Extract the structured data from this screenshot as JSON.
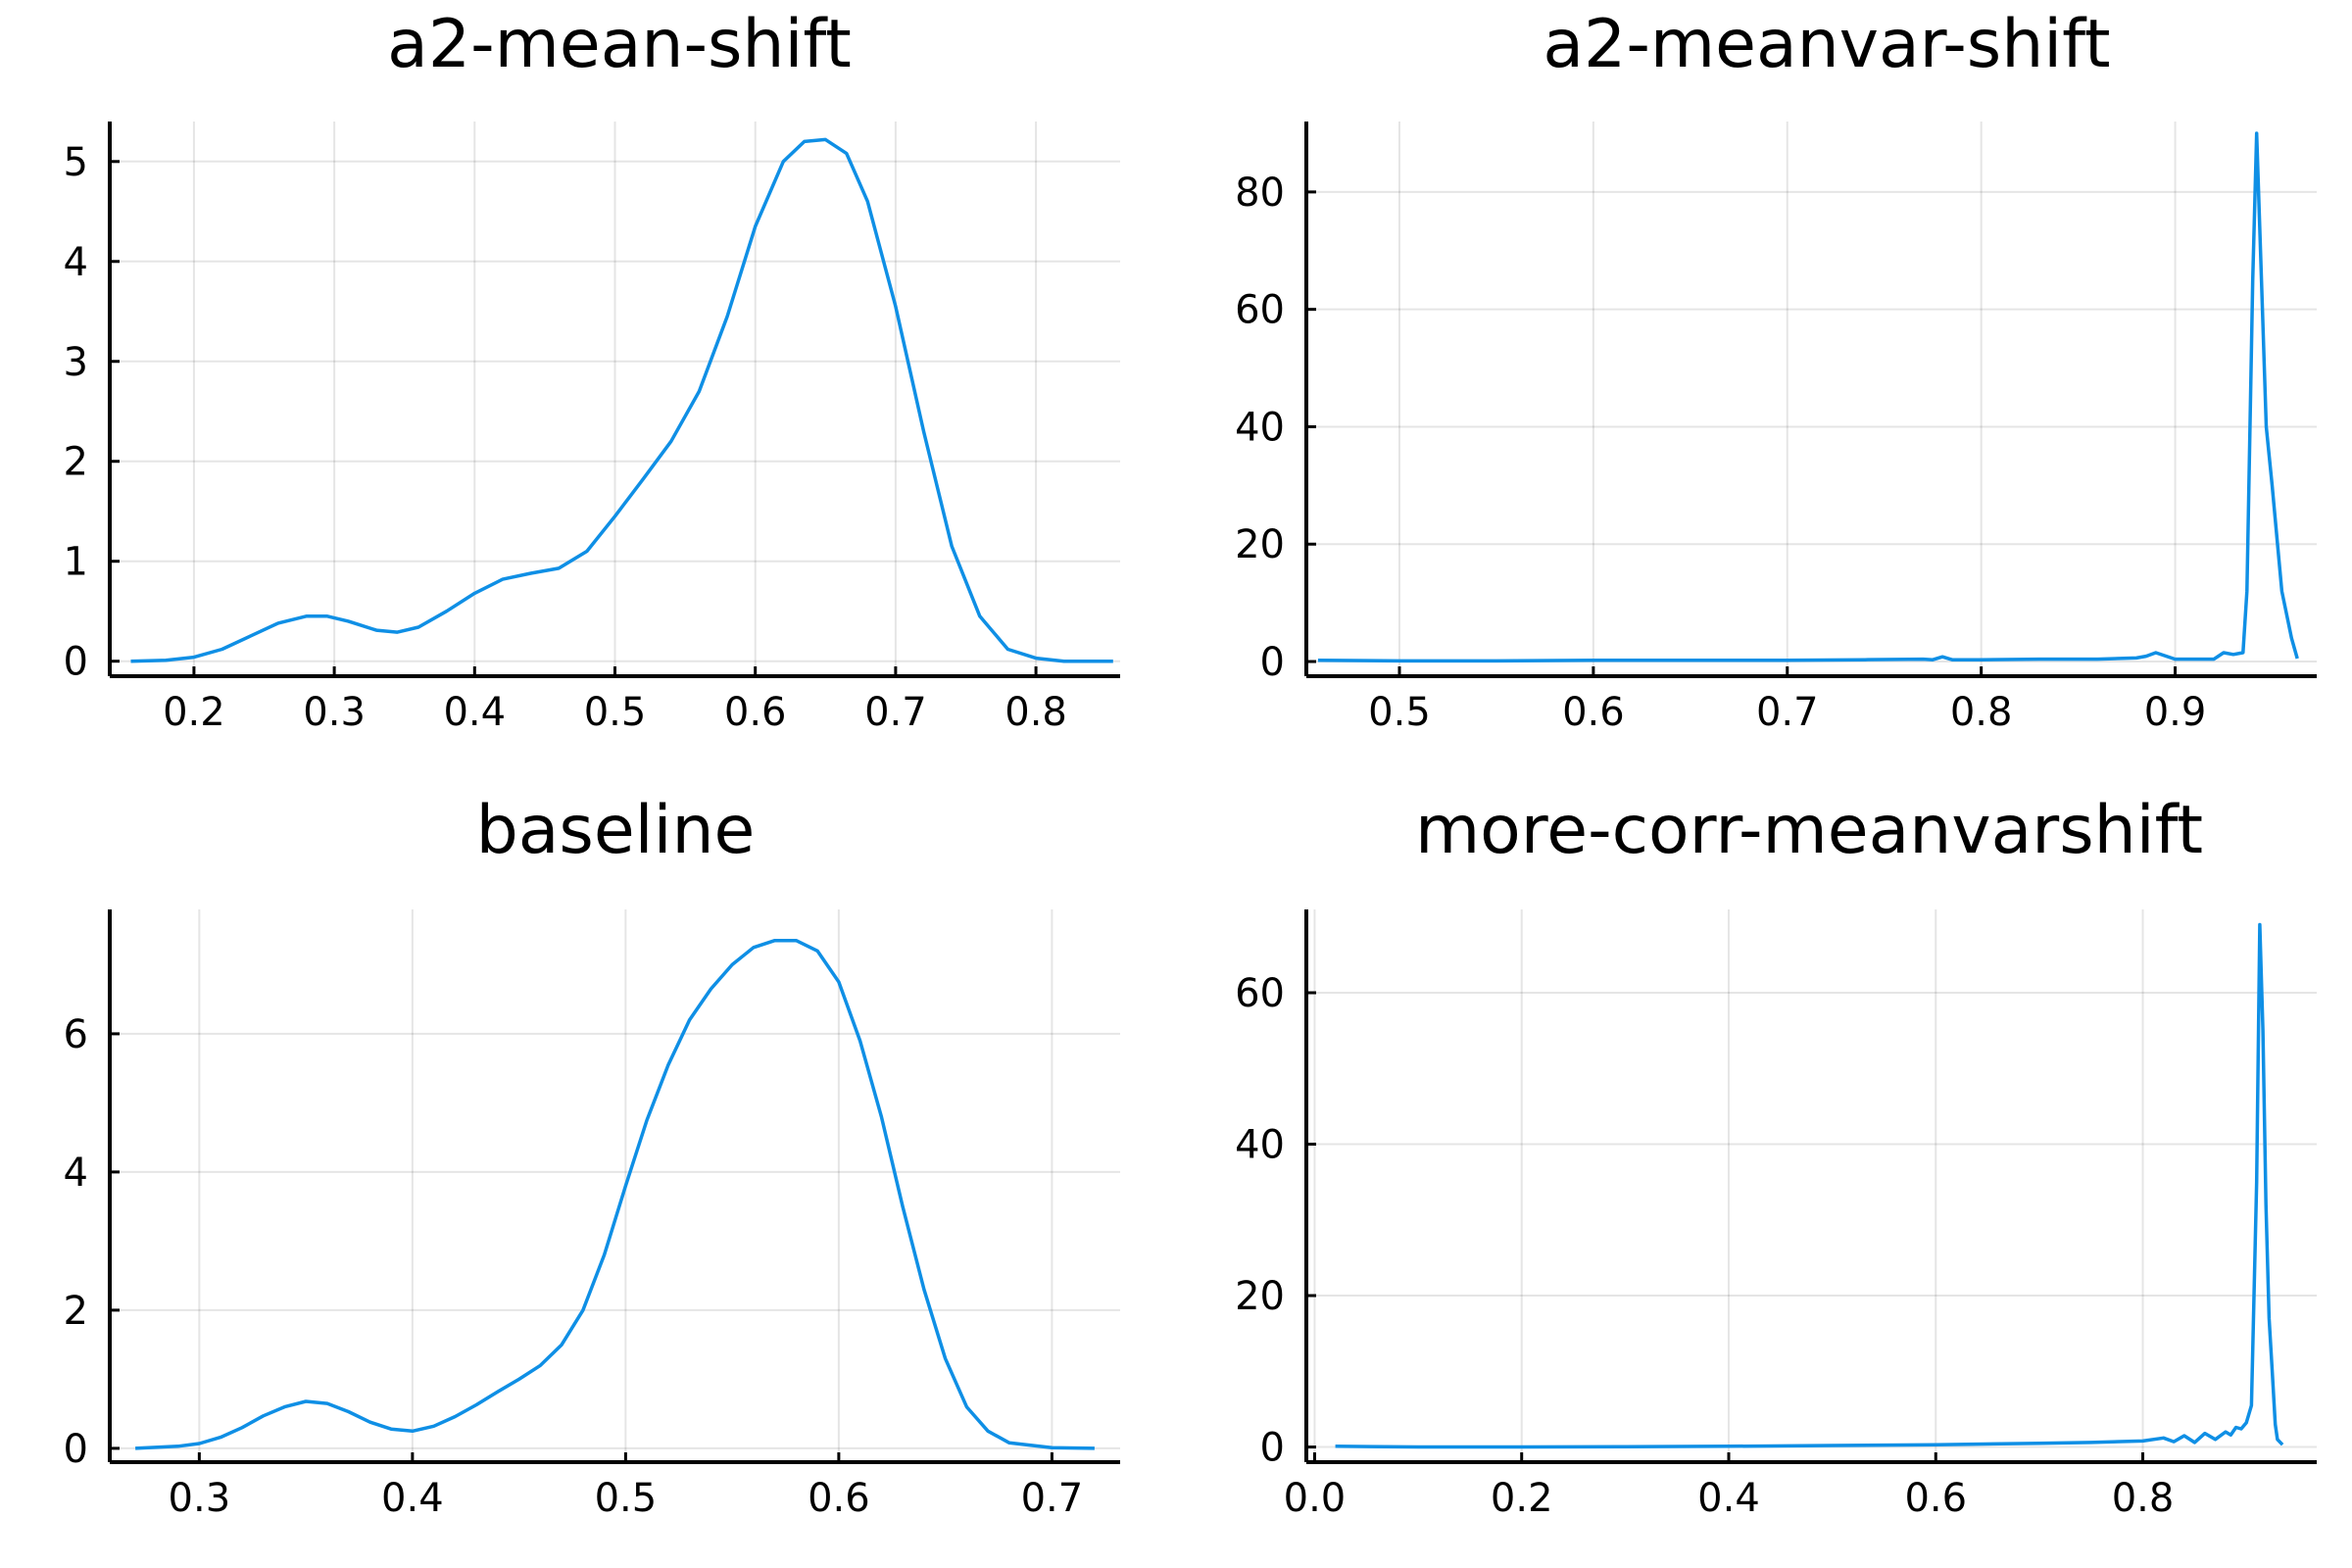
{
  "style": {
    "series_color": "#0f8fe5",
    "background": "#ffffff"
  },
  "chart_data": [
    {
      "type": "line",
      "title": "a2-mean-shift",
      "grid": true,
      "legend": "none",
      "xlim": [
        0.14,
        0.86
      ],
      "ylim": [
        -0.15,
        5.4
      ],
      "xticks": [
        0.2,
        0.3,
        0.4,
        0.5,
        0.6,
        0.7,
        0.8
      ],
      "xtick_labels": [
        "0.2",
        "0.3",
        "0.4",
        "0.5",
        "0.6",
        "0.7",
        "0.8"
      ],
      "yticks": [
        0,
        1,
        2,
        3,
        4,
        5
      ],
      "ytick_labels": [
        "0",
        "1",
        "2",
        "3",
        "4",
        "5"
      ],
      "series": [
        {
          "x": [
            0.155,
            0.18,
            0.2,
            0.22,
            0.24,
            0.26,
            0.28,
            0.295,
            0.31,
            0.33,
            0.345,
            0.36,
            0.38,
            0.4,
            0.42,
            0.44,
            0.46,
            0.48,
            0.5,
            0.52,
            0.54,
            0.56,
            0.58,
            0.6,
            0.62,
            0.635,
            0.65,
            0.665,
            0.68,
            0.7,
            0.72,
            0.74,
            0.76,
            0.78,
            0.8,
            0.82,
            0.855
          ],
          "y": [
            0.0,
            0.01,
            0.04,
            0.12,
            0.25,
            0.38,
            0.45,
            0.45,
            0.4,
            0.31,
            0.29,
            0.34,
            0.5,
            0.68,
            0.82,
            0.88,
            0.93,
            1.1,
            1.45,
            1.82,
            2.2,
            2.7,
            3.45,
            4.35,
            5.0,
            5.2,
            5.22,
            5.08,
            4.6,
            3.55,
            2.3,
            1.15,
            0.45,
            0.12,
            0.03,
            0.0,
            0.0
          ]
        }
      ]
    },
    {
      "type": "line",
      "title": "a2-meanvar-shift",
      "grid": true,
      "legend": "none",
      "xlim": [
        0.452,
        0.973
      ],
      "ylim": [
        -2.5,
        92
      ],
      "xticks": [
        0.5,
        0.6,
        0.7,
        0.8,
        0.9
      ],
      "xtick_labels": [
        "0.5",
        "0.6",
        "0.7",
        "0.8",
        "0.9"
      ],
      "yticks": [
        0,
        20,
        40,
        60,
        80
      ],
      "ytick_labels": [
        "0",
        "20",
        "40",
        "60",
        "80"
      ],
      "series": [
        {
          "x": [
            0.458,
            0.5,
            0.55,
            0.6,
            0.65,
            0.7,
            0.74,
            0.77,
            0.775,
            0.78,
            0.785,
            0.8,
            0.83,
            0.86,
            0.88,
            0.885,
            0.89,
            0.9,
            0.91,
            0.92,
            0.925,
            0.93,
            0.935,
            0.937,
            0.94,
            0.942,
            0.945,
            0.947,
            0.95,
            0.955,
            0.96,
            0.963
          ],
          "y": [
            0.2,
            0.1,
            0.1,
            0.2,
            0.2,
            0.2,
            0.3,
            0.4,
            0.3,
            0.8,
            0.3,
            0.3,
            0.4,
            0.4,
            0.6,
            0.9,
            1.5,
            0.4,
            0.4,
            0.4,
            1.5,
            1.2,
            1.5,
            12,
            65,
            90,
            60,
            40,
            30,
            12,
            4,
            0.5
          ]
        }
      ]
    },
    {
      "type": "line",
      "title": "baseline",
      "grid": true,
      "legend": "none",
      "xlim": [
        0.258,
        0.732
      ],
      "ylim": [
        -0.2,
        7.8
      ],
      "xticks": [
        0.3,
        0.4,
        0.5,
        0.6,
        0.7
      ],
      "xtick_labels": [
        "0.3",
        "0.4",
        "0.5",
        "0.6",
        "0.7"
      ],
      "yticks": [
        0,
        2,
        4,
        6
      ],
      "ytick_labels": [
        "0",
        "2",
        "4",
        "6"
      ],
      "series": [
        {
          "x": [
            0.27,
            0.29,
            0.3,
            0.31,
            0.32,
            0.33,
            0.34,
            0.35,
            0.36,
            0.37,
            0.38,
            0.39,
            0.4,
            0.41,
            0.42,
            0.43,
            0.44,
            0.45,
            0.46,
            0.47,
            0.48,
            0.49,
            0.5,
            0.51,
            0.52,
            0.53,
            0.54,
            0.55,
            0.56,
            0.57,
            0.58,
            0.59,
            0.6,
            0.61,
            0.62,
            0.63,
            0.64,
            0.65,
            0.66,
            0.67,
            0.68,
            0.7,
            0.72
          ],
          "y": [
            0.0,
            0.03,
            0.07,
            0.16,
            0.3,
            0.47,
            0.6,
            0.68,
            0.65,
            0.53,
            0.38,
            0.28,
            0.25,
            0.32,
            0.46,
            0.63,
            0.82,
            1.0,
            1.2,
            1.5,
            2.0,
            2.8,
            3.8,
            4.75,
            5.55,
            6.2,
            6.65,
            7.0,
            7.25,
            7.35,
            7.35,
            7.2,
            6.75,
            5.9,
            4.8,
            3.5,
            2.3,
            1.3,
            0.6,
            0.25,
            0.08,
            0.01,
            0.0
          ]
        }
      ]
    },
    {
      "type": "line",
      "title": "more-corr-meanvarshift",
      "grid": true,
      "legend": "none",
      "xlim": [
        -0.008,
        0.968
      ],
      "ylim": [
        -2,
        71
      ],
      "xticks": [
        0.0,
        0.2,
        0.4,
        0.6,
        0.8
      ],
      "xtick_labels": [
        "0.0",
        "0.2",
        "0.4",
        "0.6",
        "0.8"
      ],
      "yticks": [
        0,
        20,
        40,
        60
      ],
      "ytick_labels": [
        "0",
        "20",
        "40",
        "60"
      ],
      "series": [
        {
          "x": [
            0.02,
            0.1,
            0.2,
            0.3,
            0.4,
            0.5,
            0.6,
            0.7,
            0.75,
            0.8,
            0.82,
            0.83,
            0.84,
            0.85,
            0.86,
            0.87,
            0.88,
            0.885,
            0.89,
            0.895,
            0.9,
            0.905,
            0.91,
            0.913,
            0.916,
            0.919,
            0.922,
            0.925,
            0.928,
            0.93,
            0.935
          ],
          "y": [
            0.1,
            0.0,
            0.0,
            0.05,
            0.1,
            0.2,
            0.3,
            0.5,
            0.6,
            0.8,
            1.2,
            0.7,
            1.5,
            0.6,
            1.8,
            1.0,
            2.0,
            1.6,
            2.6,
            2.4,
            3.2,
            5.5,
            35,
            69,
            55,
            32,
            17,
            10,
            3,
            1,
            0.3
          ]
        }
      ]
    }
  ]
}
